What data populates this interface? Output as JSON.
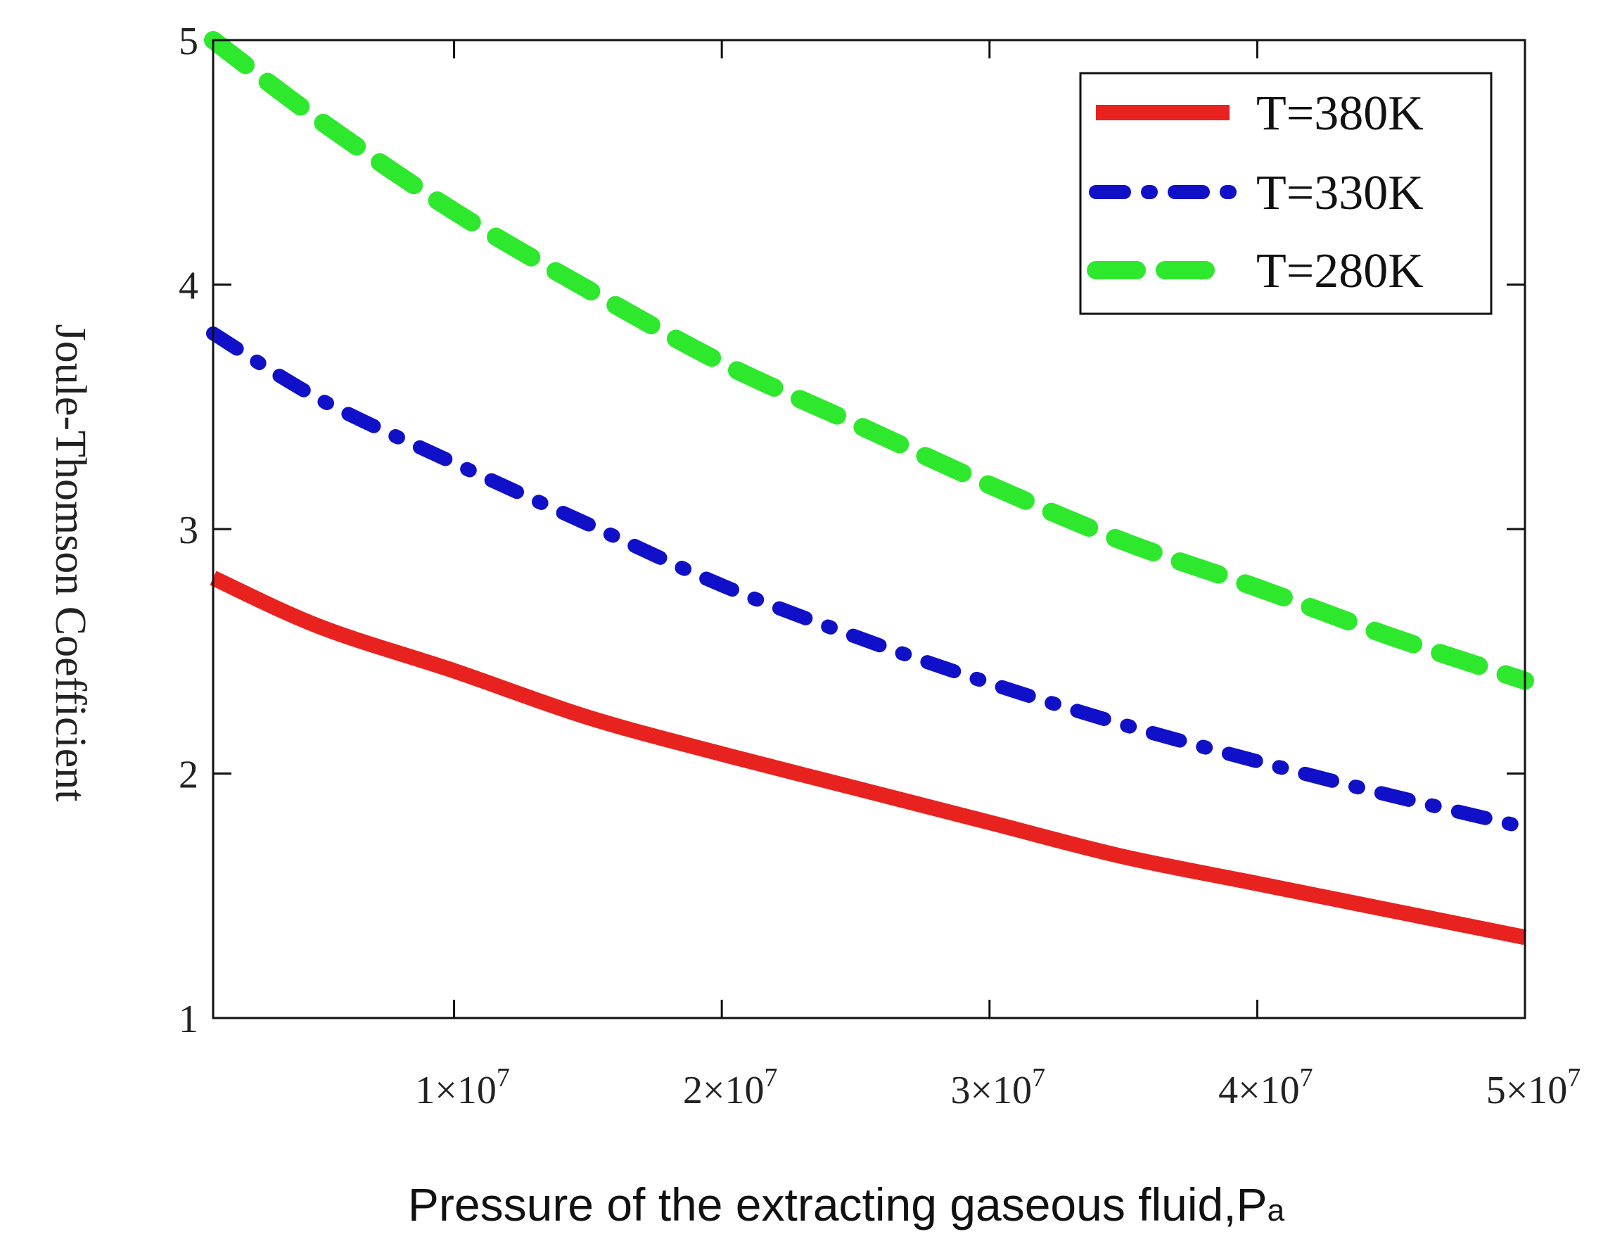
{
  "chart_data": {
    "type": "line",
    "title": "",
    "xlabel": "Pressure of the extracting gaseous fluid,P",
    "xlabel_suffix": "a",
    "ylabel": "Joule-Thomson Coefficient",
    "xlim": [
      1000000,
      50000000
    ],
    "ylim": [
      1,
      5
    ],
    "x_ticks": [
      {
        "value": 10000000,
        "mantissa": "1×10",
        "exp": "7"
      },
      {
        "value": 20000000,
        "mantissa": "2×10",
        "exp": "7"
      },
      {
        "value": 30000000,
        "mantissa": "3×10",
        "exp": "7"
      },
      {
        "value": 40000000,
        "mantissa": "4×10",
        "exp": "7"
      },
      {
        "value": 50000000,
        "mantissa": "5×10",
        "exp": "7"
      }
    ],
    "y_ticks": [
      {
        "value": 1,
        "label": "1"
      },
      {
        "value": 2,
        "label": "2"
      },
      {
        "value": 3,
        "label": "3"
      },
      {
        "value": 4,
        "label": "4"
      },
      {
        "value": 5,
        "label": "5"
      }
    ],
    "grid": false,
    "legend_position": "top-right",
    "x": [
      1000000,
      5000000,
      10000000,
      15000000,
      20000000,
      25000000,
      30000000,
      35000000,
      40000000,
      45000000,
      50000000
    ],
    "series": [
      {
        "name": "T=380K",
        "style": "solid",
        "color": "#e8231f",
        "values": [
          2.8,
          2.6,
          2.42,
          2.23,
          2.08,
          1.94,
          1.8,
          1.66,
          1.55,
          1.44,
          1.33
        ]
      },
      {
        "name": "T=330K",
        "style": "dashdot",
        "color": "#1010c8",
        "values": [
          3.8,
          3.53,
          3.27,
          3.02,
          2.77,
          2.56,
          2.37,
          2.2,
          2.05,
          1.91,
          1.78
        ]
      },
      {
        "name": "T=280K",
        "style": "dashed",
        "color": "#2ee82e",
        "values": [
          5.0,
          4.67,
          4.3,
          3.98,
          3.68,
          3.43,
          3.18,
          2.95,
          2.76,
          2.56,
          2.38
        ]
      }
    ]
  }
}
